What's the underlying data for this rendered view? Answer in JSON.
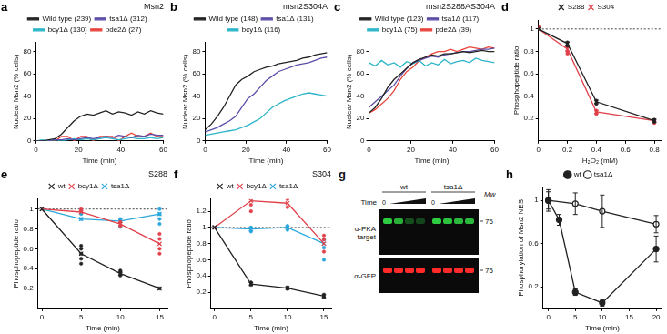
{
  "chart_data": [
    {
      "type": "line",
      "title": "a",
      "annotations": [
        "Msn2"
      ],
      "x_label": "Time (min)",
      "y_label": "Nuclear Msn2 (% cells)",
      "x": [
        0,
        3,
        6,
        9,
        12,
        15,
        18,
        21,
        24,
        27,
        30,
        33,
        36,
        39,
        42,
        45,
        48,
        51,
        54,
        57,
        60
      ],
      "series": [
        {
          "name": "Wild type (239)",
          "color": "#222222",
          "values": [
            0,
            0,
            1,
            2,
            6,
            12,
            18,
            22,
            24,
            23,
            25,
            27,
            24,
            26,
            25,
            23,
            26,
            24,
            27,
            25,
            24
          ]
        },
        {
          "name": "tsa1Δ (312)",
          "color": "#5b4ea8",
          "values": [
            0,
            0,
            0,
            1,
            1,
            2,
            1,
            2,
            3,
            2,
            3,
            4,
            3,
            5,
            4,
            3,
            5,
            4,
            6,
            5,
            5
          ]
        },
        {
          "name": "bcy1Δ (130)",
          "color": "#2bb5c8",
          "values": [
            0,
            1,
            0,
            1,
            0,
            1,
            2,
            1,
            2,
            1,
            2,
            3,
            2,
            1,
            2,
            3,
            2,
            2,
            3,
            2,
            3
          ]
        },
        {
          "name": "pde2Δ (27)",
          "color": "#e8453c",
          "values": [
            0,
            0,
            0,
            0,
            4,
            4,
            0,
            4,
            4,
            0,
            4,
            4,
            4,
            0,
            4,
            7,
            4,
            4,
            7,
            4,
            4
          ]
        }
      ],
      "xlim": [
        0,
        60
      ],
      "xticks": [
        0,
        20,
        40,
        60
      ],
      "ylim": [
        0,
        88
      ],
      "yticks": [
        0,
        20,
        40,
        60,
        80
      ],
      "grid": false,
      "legend": "top"
    },
    {
      "type": "line",
      "title": "b",
      "annotations": [
        "msn2S304A"
      ],
      "x_label": "Time (min)",
      "y_label": "Nuclear Msn2 (% cells)",
      "x": [
        0,
        3,
        6,
        9,
        12,
        15,
        18,
        21,
        24,
        27,
        30,
        33,
        36,
        39,
        42,
        45,
        48,
        51,
        54,
        57,
        60
      ],
      "series": [
        {
          "name": "Wild type (148)",
          "color": "#222222",
          "values": [
            10,
            15,
            22,
            30,
            40,
            50,
            55,
            58,
            62,
            64,
            66,
            67,
            69,
            70,
            71,
            72,
            74,
            75,
            77,
            78,
            79
          ]
        },
        {
          "name": "tsa1Δ (131)",
          "color": "#5b4ea8",
          "values": [
            8,
            10,
            12,
            15,
            18,
            22,
            30,
            38,
            42,
            48,
            54,
            58,
            62,
            64,
            66,
            68,
            69,
            70,
            72,
            74,
            75
          ]
        },
        {
          "name": "bcy1Δ (116)",
          "color": "#2bb5c8",
          "values": [
            5,
            6,
            7,
            8,
            9,
            10,
            12,
            14,
            17,
            20,
            25,
            30,
            33,
            36,
            38,
            40,
            42,
            43,
            42,
            41,
            40
          ]
        }
      ],
      "xlim": [
        0,
        60
      ],
      "xticks": [
        0,
        20,
        40,
        60
      ],
      "ylim": [
        0,
        88
      ],
      "yticks": [
        0,
        20,
        40,
        60,
        80
      ],
      "grid": false,
      "legend": "top"
    },
    {
      "type": "line",
      "title": "c",
      "annotations": [
        "msn2S288AS304A"
      ],
      "x_label": "Time (min)",
      "y_label": "Nuclear Msn2 (% cells)",
      "x": [
        0,
        3,
        6,
        9,
        12,
        15,
        18,
        21,
        24,
        27,
        30,
        33,
        36,
        39,
        42,
        45,
        48,
        51,
        54,
        57,
        60
      ],
      "series": [
        {
          "name": "Wild type (123)",
          "color": "#222222",
          "values": [
            25,
            30,
            38,
            48,
            55,
            60,
            65,
            70,
            73,
            75,
            77,
            76,
            78,
            78,
            79,
            80,
            79,
            80,
            81,
            80,
            80
          ]
        },
        {
          "name": "tsa1Δ (117)",
          "color": "#5b4ea8",
          "values": [
            30,
            35,
            40,
            45,
            50,
            58,
            65,
            70,
            72,
            74,
            76,
            75,
            77,
            78,
            79,
            80,
            80,
            81,
            82,
            82,
            83
          ]
        },
        {
          "name": "bcy1Δ (75)",
          "color": "#2bb5c8",
          "values": [
            70,
            67,
            72,
            68,
            70,
            66,
            71,
            69,
            72,
            67,
            70,
            68,
            73,
            69,
            71,
            72,
            70,
            74,
            72,
            71,
            70
          ]
        },
        {
          "name": "pde2Δ (39)",
          "color": "#e8453c",
          "values": [
            25,
            28,
            33,
            38,
            45,
            55,
            62,
            66,
            72,
            75,
            78,
            80,
            80,
            82,
            80,
            82,
            84,
            83,
            82,
            84,
            83
          ]
        }
      ],
      "xlim": [
        0,
        60
      ],
      "xticks": [
        0,
        20,
        40,
        60
      ],
      "ylim": [
        0,
        88
      ],
      "yticks": [
        0,
        20,
        40,
        60,
        80
      ],
      "grid": false,
      "legend": "top"
    },
    {
      "type": "line",
      "title": "d",
      "x_label": "H₂O₂ (mM)",
      "y_label": "Phosphopeptide ratio",
      "series": [
        {
          "name": "S288",
          "color": "#222222",
          "marker": "cross",
          "x": [
            0,
            0.2,
            0.4,
            0.8
          ],
          "values": [
            1,
            0.87,
            0.35,
            0.18
          ],
          "replicates": [
            [
              0.2,
              0.88
            ],
            [
              0.2,
              0.85
            ],
            [
              0.4,
              0.36
            ],
            [
              0.4,
              0.33
            ],
            [
              0.8,
              0.19
            ],
            [
              0.8,
              0.17
            ]
          ]
        },
        {
          "name": "S304",
          "color": "#e0414a",
          "marker": "cross",
          "x": [
            0,
            0.2,
            0.4,
            0.8
          ],
          "values": [
            1,
            0.82,
            0.26,
            0.18
          ],
          "replicates": [
            [
              0,
              1.02
            ],
            [
              0.2,
              0.84
            ],
            [
              0.2,
              0.8
            ],
            [
              0.2,
              0.78
            ],
            [
              0.4,
              0.27
            ],
            [
              0.4,
              0.24
            ],
            [
              0.8,
              0.18
            ],
            [
              0.8,
              0.16
            ]
          ]
        }
      ],
      "xlim": [
        0,
        0.85
      ],
      "xticks": [
        0,
        0.2,
        0.4,
        0.6,
        0.8
      ],
      "ylim": [
        0,
        1.08
      ],
      "yticks": [
        0.2,
        0.4,
        0.6,
        0.8,
        1
      ],
      "grid": false,
      "legend": "top",
      "reference_y": 1
    },
    {
      "type": "line",
      "title": "e",
      "annotations": [
        "S288"
      ],
      "x_label": "Time (min)",
      "y_label": "Phosphopeptide ratio",
      "series": [
        {
          "name": "wt",
          "color": "#222222",
          "marker": "cross",
          "x": [
            0,
            5,
            10,
            15
          ],
          "values": [
            1,
            0.55,
            0.35,
            0.2
          ],
          "replicates": [
            [
              5,
              0.45
            ],
            [
              5,
              0.55
            ],
            [
              5,
              0.6
            ],
            [
              5,
              0.63
            ],
            [
              5,
              0.5
            ],
            [
              10,
              0.33
            ],
            [
              10,
              0.38
            ],
            [
              10,
              0.36
            ],
            [
              15,
              0.2
            ]
          ]
        },
        {
          "name": "bcy1Δ",
          "color": "#e0414a",
          "marker": "cross",
          "x": [
            0,
            5,
            10,
            15
          ],
          "values": [
            1,
            0.97,
            0.85,
            0.65
          ],
          "replicates": [
            [
              5,
              1
            ],
            [
              5,
              0.98
            ],
            [
              10,
              0.83
            ],
            [
              10,
              0.87
            ],
            [
              15,
              0.55
            ],
            [
              15,
              0.6
            ],
            [
              15,
              0.7
            ],
            [
              15,
              0.75
            ]
          ]
        },
        {
          "name": "tsa1Δ",
          "color": "#2aa7dc",
          "marker": "cross",
          "x": [
            0,
            5,
            10,
            15
          ],
          "values": [
            1,
            0.9,
            0.88,
            0.95
          ],
          "replicates": [
            [
              5,
              0.9
            ],
            [
              5,
              0.95
            ],
            [
              10,
              0.82
            ],
            [
              10,
              0.9
            ],
            [
              15,
              0.85
            ],
            [
              15,
              0.95
            ],
            [
              15,
              1
            ],
            [
              15,
              0.9
            ]
          ]
        }
      ],
      "xlim": [
        -0.5,
        16
      ],
      "xticks": [
        0,
        5,
        10,
        15
      ],
      "ylim": [
        0,
        1.1
      ],
      "yticks": [
        0.2,
        0.4,
        0.6,
        0.8,
        1
      ],
      "grid": false,
      "legend": "top",
      "reference_y": 1
    },
    {
      "type": "line",
      "title": "f",
      "annotations": [
        "S304"
      ],
      "x_label": "Time (min)",
      "y_label": "Phosphopeptide ratio",
      "series": [
        {
          "name": "wt",
          "color": "#222222",
          "marker": "cross",
          "x": [
            0,
            5,
            10,
            15
          ],
          "values": [
            1,
            0.3,
            0.25,
            0.15
          ],
          "replicates": [
            [
              5,
              0.29
            ],
            [
              5,
              0.32
            ],
            [
              10,
              0.24
            ],
            [
              10,
              0.26
            ],
            [
              15,
              0.14
            ],
            [
              15,
              0.17
            ]
          ]
        },
        {
          "name": "bcy1Δ",
          "color": "#e0414a",
          "marker": "cross",
          "x": [
            0,
            5,
            10,
            15
          ],
          "values": [
            1,
            1.33,
            1.3,
            0.8
          ],
          "replicates": [
            [
              5,
              1.28
            ],
            [
              5,
              1.2
            ],
            [
              10,
              1.25
            ],
            [
              10,
              1.35
            ],
            [
              15,
              0.7
            ],
            [
              15,
              0.85
            ],
            [
              15,
              0.9
            ]
          ]
        },
        {
          "name": "tsa1Δ",
          "color": "#2aa7dc",
          "marker": "cross",
          "x": [
            0,
            5,
            10,
            15
          ],
          "values": [
            1,
            0.98,
            1,
            0.8
          ],
          "replicates": [
            [
              5,
              0.95
            ],
            [
              5,
              1.0
            ],
            [
              10,
              0.97
            ],
            [
              10,
              1.02
            ],
            [
              15,
              0.75
            ],
            [
              15,
              0.85
            ],
            [
              15,
              0.6
            ]
          ]
        }
      ],
      "xlim": [
        -0.5,
        16
      ],
      "xticks": [
        0,
        5,
        10,
        15
      ],
      "ylim": [
        0,
        1.35
      ],
      "yticks": [
        0.2,
        0.4,
        0.6,
        0.8,
        1,
        1.2
      ],
      "grid": false,
      "legend": "top",
      "reference_y": 1
    },
    {
      "type": "line",
      "title": "h",
      "x_label": "Time (min)",
      "y_label": "Phosphorylation of Msn2 NES",
      "series": [
        {
          "name": "wt",
          "color": "#222222",
          "marker": "circle",
          "x": [
            0,
            2,
            5,
            10,
            20
          ],
          "values": [
            1,
            0.82,
            0.15,
            0.05,
            0.55
          ],
          "errors": [
            0.08,
            0.05,
            0.03,
            0.03,
            0.12
          ]
        },
        {
          "name": "tsa1Δ",
          "color": "#222222",
          "marker": "circle_open",
          "x": [
            0,
            5,
            10,
            20
          ],
          "values": [
            1,
            0.97,
            0.9,
            0.78
          ],
          "errors": [
            0.1,
            0.1,
            0.15,
            0.08
          ]
        }
      ],
      "xlim": [
        -1,
        21
      ],
      "xticks": [
        0,
        5,
        10,
        15,
        20
      ],
      "ylim": [
        0,
        1.12
      ],
      "yticks": [
        0.2,
        0.6,
        1
      ],
      "grid": false,
      "legend": "top"
    }
  ],
  "blot": {
    "title": "g",
    "time_label": "Time",
    "mw_label": "Mw",
    "groups": [
      {
        "name": "wt",
        "time_start": 0
      },
      {
        "name": "tsa1Δ",
        "time_start": 0
      }
    ],
    "rows": [
      {
        "label": "α-PKA target",
        "color": "#2ecc40",
        "marker": 75,
        "intensity": [
          [
            1,
            0.85,
            0.35,
            0.3
          ],
          [
            1,
            0.95,
            0.9,
            0.9
          ]
        ]
      },
      {
        "label": "α-GFP",
        "color": "#ff2a2a",
        "marker": 75,
        "intensity": [
          [
            1,
            1,
            1,
            1
          ],
          [
            1,
            1,
            1,
            1
          ]
        ]
      }
    ]
  }
}
